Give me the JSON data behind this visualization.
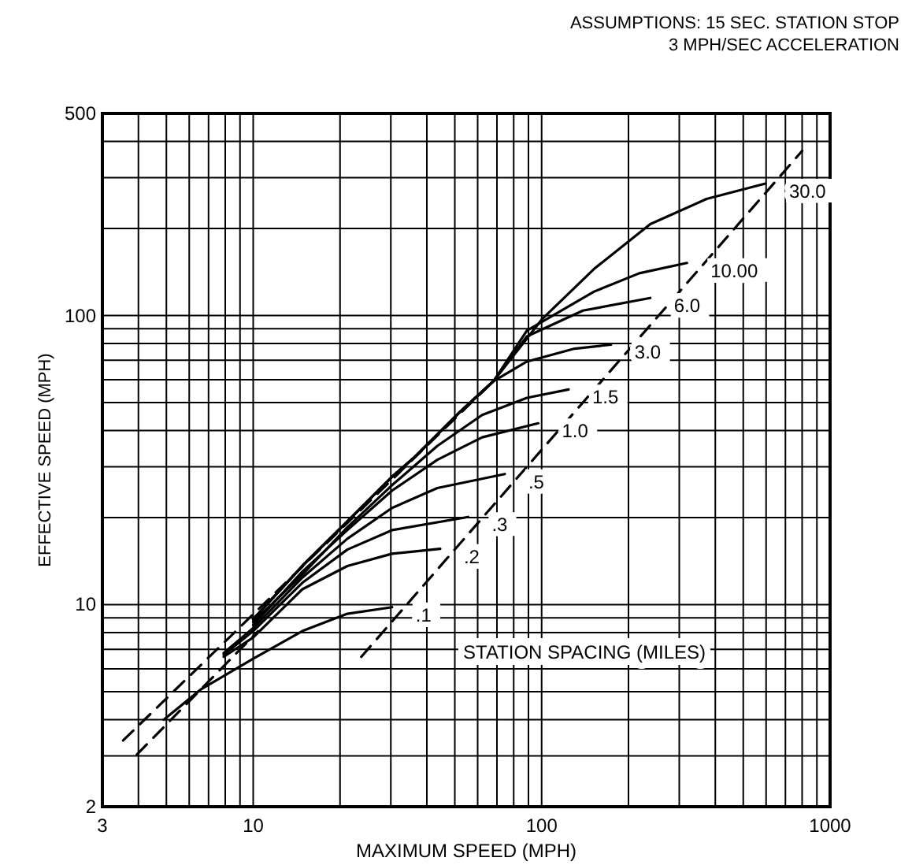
{
  "chart_data": {
    "type": "line",
    "xlabel": "MAXIMUM SPEED (MPH)",
    "ylabel": "EFFECTIVE SPEED (MPH)",
    "log": "xy",
    "grid": true,
    "line_style": "solid",
    "marker": "none",
    "xlim": [
      3,
      1000
    ],
    "ylim": [
      2,
      500
    ],
    "xticks": [
      3,
      {
        "value": 4,
        "label": null
      },
      {
        "value": 5,
        "label": null
      },
      {
        "value": 6,
        "label": null
      },
      {
        "value": 7,
        "label": null
      },
      {
        "value": 8,
        "label": null
      },
      {
        "value": 9,
        "label": null
      },
      10,
      {
        "value": 20,
        "label": null
      },
      {
        "value": 30,
        "label": null
      },
      {
        "value": 40,
        "label": null
      },
      {
        "value": 50,
        "label": null
      },
      {
        "value": 60,
        "label": null
      },
      {
        "value": 70,
        "label": null
      },
      {
        "value": 80,
        "label": null
      },
      {
        "value": 90,
        "label": null
      },
      100,
      {
        "value": 200,
        "label": null
      },
      {
        "value": 300,
        "label": null
      },
      {
        "value": 400,
        "label": null
      },
      {
        "value": 500,
        "label": null
      },
      {
        "value": 600,
        "label": null
      },
      {
        "value": 700,
        "label": null
      },
      {
        "value": 800,
        "label": null
      },
      {
        "value": 900,
        "label": null
      },
      1000
    ],
    "yticks": [
      2,
      {
        "value": 3,
        "label": null
      },
      {
        "value": 4,
        "label": null
      },
      {
        "value": 5,
        "label": null
      },
      {
        "value": 6,
        "label": null
      },
      {
        "value": 7,
        "label": null
      },
      {
        "value": 8,
        "label": null
      },
      {
        "value": 9,
        "label": null
      },
      10,
      {
        "value": 20,
        "label": null
      },
      {
        "value": 30,
        "label": null
      },
      {
        "value": 40,
        "label": null
      },
      {
        "value": 50,
        "label": null
      },
      {
        "value": 60,
        "label": null
      },
      {
        "value": 70,
        "label": null
      },
      {
        "value": 80,
        "label": null
      },
      {
        "value": 90,
        "label": null
      },
      100,
      {
        "value": 200,
        "label": null
      },
      {
        "value": 300,
        "label": null
      },
      {
        "value": 400,
        "label": null
      },
      500
    ],
    "annotations": [
      "ASSUMPTIONS: 15 SEC. STATION STOP",
      "3 MPH/SEC ACCELERATION",
      "STATION SPACING (MILES)"
    ],
    "series": [
      {
        "name": ".1",
        "color": "#000000",
        "x": [
          4.9,
          6.6,
          10,
          14.8,
          21.2,
          30.3
        ],
        "values": [
          4.0,
          5.1,
          6.5,
          8.1,
          9.3,
          9.8
        ]
      },
      {
        "name": ".2",
        "color": "#000000",
        "x": [
          7.9,
          10,
          14.8,
          21.2,
          30.3,
          44.5
        ],
        "values": [
          6.6,
          7.7,
          11.3,
          13.6,
          15.0,
          15.6
        ]
      },
      {
        "name": ".3",
        "color": "#000000",
        "x": [
          7.9,
          10,
          14.8,
          21.2,
          30.3,
          55.6
        ],
        "values": [
          6.7,
          8.1,
          11.9,
          15.5,
          18.1,
          20.1
        ]
      },
      {
        "name": ".5",
        "color": "#000000",
        "x": [
          7.9,
          10,
          14.8,
          21.2,
          30.3,
          43.5,
          74.5
        ],
        "values": [
          6.8,
          8.3,
          12.4,
          16.9,
          21.6,
          25.3,
          28.3
        ]
      },
      {
        "name": "1.0",
        "color": "#000000",
        "x": [
          10,
          14.8,
          21.2,
          30.3,
          43.5,
          62.2,
          97.3
        ],
        "values": [
          8.5,
          13.0,
          18.1,
          24.8,
          31.7,
          37.9,
          42.4
        ]
      },
      {
        "name": "1.5",
        "color": "#000000",
        "x": [
          10,
          14.8,
          21.2,
          30.3,
          43.5,
          62.2,
          88.9,
          124
        ],
        "values": [
          8.7,
          12.7,
          18.5,
          25.9,
          35.4,
          45.3,
          51.9,
          55.5
        ]
      },
      {
        "name": "3.0",
        "color": "#000000",
        "x": [
          10,
          14.8,
          21.2,
          30.3,
          36.3,
          52,
          68.1,
          88.9,
          130,
          174
        ],
        "values": [
          8.9,
          13.6,
          19.4,
          27.7,
          32.4,
          46.3,
          59.3,
          69.3,
          76.8,
          79.3
        ]
      },
      {
        "name": "6.0",
        "color": "#000000",
        "x": [
          10,
          14.8,
          21.2,
          30.3,
          36.3,
          52,
          68.1,
          88.9,
          139,
          238
        ],
        "values": [
          8.9,
          13.6,
          19.4,
          27.7,
          32.4,
          46.3,
          59.3,
          84.7,
          104,
          115
        ]
      },
      {
        "name": "10.00",
        "color": "#000000",
        "x": [
          10,
          14.8,
          21.2,
          30.3,
          36.3,
          52,
          68.1,
          88.9,
          152,
          218,
          319
        ],
        "values": [
          8.9,
          13.6,
          19.4,
          27.7,
          32.4,
          46.3,
          59.3,
          88.7,
          121,
          140,
          152
        ]
      },
      {
        "name": "30.0",
        "color": "#000000",
        "x": [
          10,
          14.8,
          21.2,
          30.3,
          36.3,
          52,
          68.1,
          100,
          152,
          238,
          373,
          597
        ],
        "values": [
          8.9,
          13.6,
          19.4,
          27.7,
          32.4,
          46.3,
          59.3,
          96.8,
          145,
          207,
          253,
          286
        ]
      },
      {
        "color": "#000000",
        "line_style": "dashed",
        "x": [
          3.54,
          68.1
        ],
        "values": [
          3.39,
          59.3
        ]
      },
      {
        "color": "#000000",
        "line_style": "dashed",
        "x": [
          3.95,
          10.4
        ],
        "values": [
          3.03,
          8.1
        ]
      },
      {
        "color": "#000000",
        "line_style": "dashed",
        "x": [
          23.7,
          800
        ],
        "values": [
          6.6,
          371
        ]
      }
    ]
  }
}
